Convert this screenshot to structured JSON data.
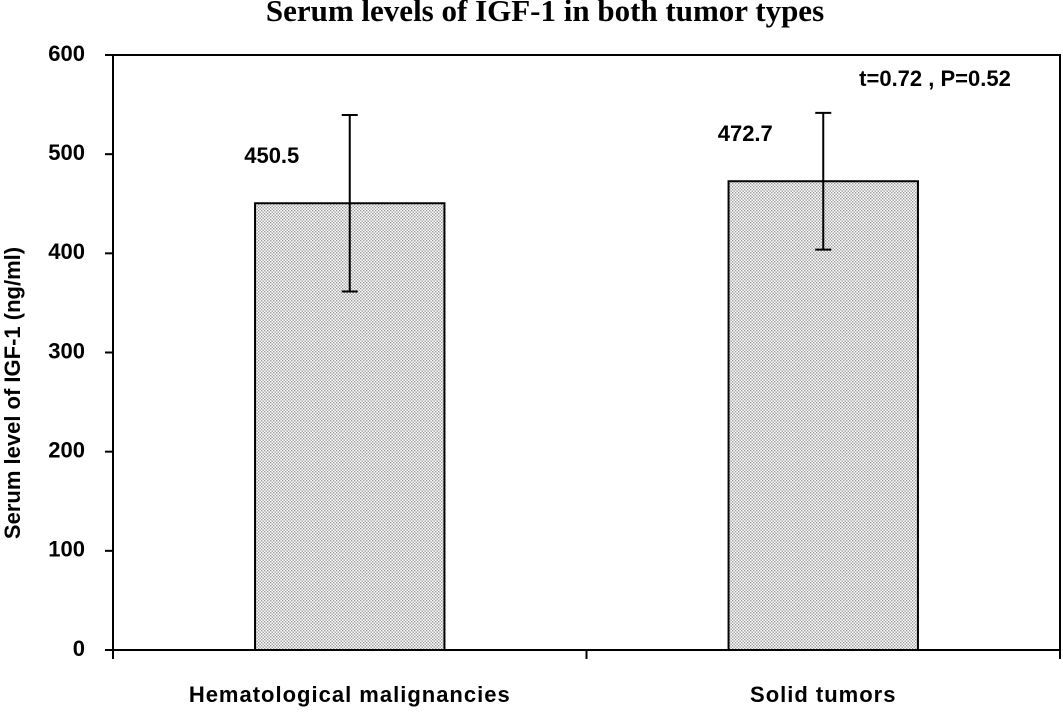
{
  "chart_data": {
    "type": "bar",
    "title": "Serum levels of IGF-1 in both tumor types",
    "ylabel": "Serum level of IGF-1 (ng/ml)",
    "annotation": "t=0.72 , P=0.52",
    "categories": [
      "Hematological malignancies",
      "Solid tumors"
    ],
    "values": [
      450.5,
      472.7
    ],
    "errors": [
      89,
      69
    ],
    "color": "#9a9a9a",
    "ylim": [
      0,
      600
    ],
    "yticks": [
      0,
      100,
      200,
      300,
      400,
      500,
      600
    ],
    "grid": false
  }
}
